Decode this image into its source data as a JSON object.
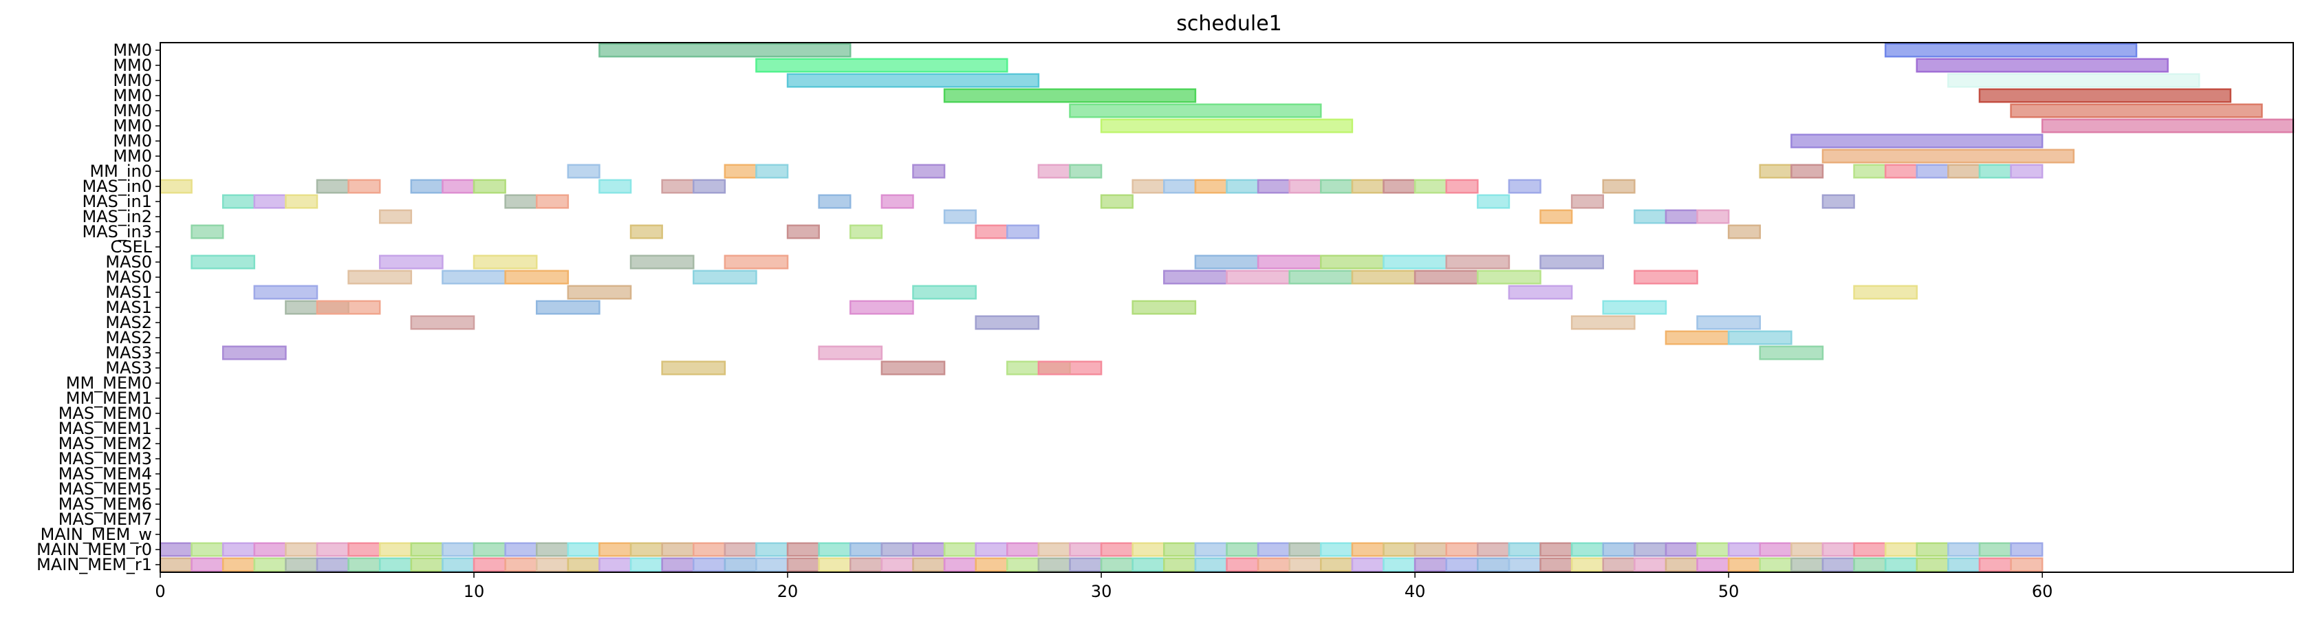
{
  "chart_data": {
    "type": "gantt",
    "title": "schedule1",
    "xlim": [
      0,
      68
    ],
    "xticks": [
      0,
      10,
      20,
      30,
      40,
      50,
      60
    ],
    "grid": false,
    "rows": [
      "MM0",
      "MM0",
      "MM0",
      "MM0",
      "MM0",
      "MM0",
      "MM0",
      "MM0",
      "MM_in0",
      "MAS_in0",
      "MAS_in1",
      "MAS_in2",
      "MAS_in3",
      "CSEL",
      "MAS0",
      "MAS0",
      "MAS1",
      "MAS1",
      "MAS2",
      "MAS2",
      "MAS3",
      "MAS3",
      "MM_MEM0",
      "MM_MEM1",
      "MAS_MEM0",
      "MAS_MEM1",
      "MAS_MEM2",
      "MAS_MEM3",
      "MAS_MEM4",
      "MAS_MEM5",
      "MAS_MEM6",
      "MAS_MEM7",
      "MAIN_MEM_w",
      "MAIN_MEM_r0",
      "MAIN_MEM_r1"
    ],
    "palette": [
      "#9fc3e7",
      "#f2b36a",
      "#8cd3e0",
      "#a98bd6",
      "#e5a4c8",
      "#8fd6a8",
      "#d9c27a",
      "#c98f8f",
      "#b7e38a",
      "#f58b9b",
      "#9ea9e8",
      "#d7b38b",
      "#7fe0c8",
      "#c5a3e8",
      "#e8e08a",
      "#a6b9a6",
      "#f0a58d",
      "#8fb7e0",
      "#dd8fd1",
      "#b1dd7c",
      "#8ae6e6",
      "#d0a0a0",
      "#a0a0d0",
      "#e0c0a0"
    ],
    "bars": [
      {
        "row": 0,
        "start": 14,
        "end": 22,
        "color": "#74c096"
      },
      {
        "row": 0,
        "start": 55,
        "end": 63,
        "color": "#6f86ea"
      },
      {
        "row": 1,
        "start": 19,
        "end": 27,
        "color": "#53f28e"
      },
      {
        "row": 1,
        "start": 56,
        "end": 64,
        "color": "#a06fd5"
      },
      {
        "row": 2,
        "start": 20,
        "end": 28,
        "color": "#5bc7d8"
      },
      {
        "row": 2,
        "start": 57,
        "end": 65,
        "color": "#d8f7f0"
      },
      {
        "row": 3,
        "start": 25,
        "end": 33,
        "color": "#4fd55a"
      },
      {
        "row": 3,
        "start": 58,
        "end": 66,
        "color": "#c34f42"
      },
      {
        "row": 4,
        "start": 29,
        "end": 37,
        "color": "#74e38a"
      },
      {
        "row": 4,
        "start": 59,
        "end": 67,
        "color": "#dc7a66"
      },
      {
        "row": 5,
        "start": 30,
        "end": 38,
        "color": "#bff56e"
      },
      {
        "row": 5,
        "start": 60,
        "end": 68,
        "color": "#dd7ea8"
      },
      {
        "row": 6,
        "start": 52,
        "end": 60,
        "color": "#9a86dc"
      },
      {
        "row": 7,
        "start": 53,
        "end": 61,
        "color": "#e9ad7a"
      }
    ],
    "mm_in0": [
      13,
      18,
      19,
      24,
      28,
      29,
      51,
      52,
      54,
      55,
      56,
      57,
      58,
      59
    ],
    "mas_in0": [
      0,
      5,
      6,
      8,
      9,
      10,
      14,
      16,
      17,
      31,
      32,
      33,
      34,
      35,
      36,
      37,
      38,
      39,
      40,
      41,
      43,
      46
    ],
    "mas_in1": [
      2,
      3,
      4,
      11,
      12,
      21,
      23,
      30,
      42,
      45,
      53
    ],
    "mas_in2": [
      7,
      25,
      44,
      47,
      48,
      49
    ],
    "mas_in3": [
      1,
      15,
      20,
      22,
      26,
      27,
      50
    ],
    "mas0_a": [
      1,
      7,
      10,
      15,
      18,
      33,
      35,
      37,
      39,
      41,
      44
    ],
    "mas0_b": [
      6,
      9,
      11,
      17,
      32,
      34,
      36,
      38,
      40,
      42,
      47
    ],
    "mas1_a": [
      3,
      13,
      24,
      43,
      54
    ],
    "mas1_b": [
      4,
      5,
      12,
      22,
      31,
      46
    ],
    "mas2_a": [
      8,
      26,
      45,
      49
    ],
    "mas2_b": [
      48,
      50
    ],
    "mas3_a": [
      2,
      21,
      51
    ],
    "mas3_b": [
      16,
      23,
      27,
      28
    ]
  }
}
